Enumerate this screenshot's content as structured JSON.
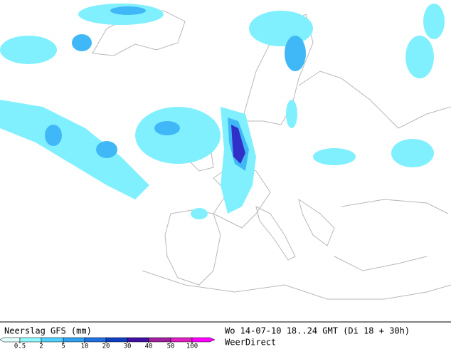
{
  "legend": {
    "title": "Neerslag GFS (mm)",
    "labels": [
      "0.5",
      "2",
      "5",
      "10",
      "20",
      "30",
      "40",
      "50",
      "100"
    ]
  },
  "info": {
    "valid_time": "Wo 14-07-10 18..24 GMT (Di 18 + 30h)",
    "source": "WeerDirect"
  }
}
